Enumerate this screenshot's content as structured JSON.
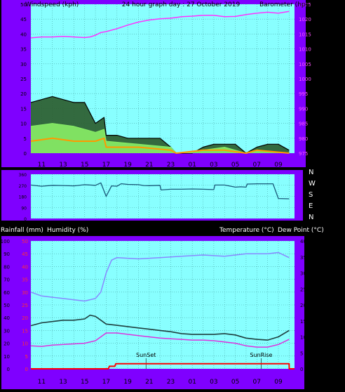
{
  "colors": {
    "frame": "#7f00ff",
    "plot_bg": "#88ffff",
    "grid": "#4aa8a8",
    "gust": "#000000",
    "windspeed": "#88ee66",
    "avg_wind": "#ff9900",
    "barometer": "#ff33ff",
    "wind_dir": "#1a5a7a",
    "humidity": "#8888ff",
    "temperature": "#1f3f3f",
    "dew_point": "#dd33dd",
    "rainfall": "#ff0000"
  },
  "header": {
    "left": "Windspeed (kph)",
    "center": "24 hour graph day : 27 October 2019",
    "right": "Barometer (hpa)"
  },
  "footer": {
    "rainfall": "Rainfall (mm)",
    "humidity": "Humidity (%)",
    "temperature": "Temperature (°C)",
    "dew_point": "Dew Point (°C)"
  },
  "time_axis": {
    "ticks": [
      "11",
      "13",
      "15",
      "17",
      "19",
      "21",
      "23",
      "01",
      "03",
      "05",
      "07",
      "09"
    ]
  },
  "chart_data": [
    {
      "type": "line",
      "title": "24 hour graph day : 27 October 2019",
      "xlabel": "",
      "ylabel": "Windspeed (kph)",
      "y2label": "Barometer (hpa)",
      "ylim": [
        0,
        50
      ],
      "y2lim": [
        975,
        1025
      ],
      "yticks": [
        0,
        5,
        10,
        15,
        20,
        25,
        30,
        35,
        40,
        45,
        50
      ],
      "y2ticks": [
        975,
        980,
        985,
        990,
        995,
        1000,
        1005,
        1010,
        1015,
        1020,
        1025
      ],
      "x_hours": [
        0,
        24.5
      ],
      "series": [
        {
          "name": "Gust",
          "axis": "left",
          "x": [
            0,
            1,
            2,
            3,
            4,
            5,
            6,
            6.8,
            7,
            8,
            9,
            10,
            11,
            12,
            13,
            13.5,
            14,
            15,
            16,
            17,
            18,
            19,
            20,
            21,
            22,
            23,
            24
          ],
          "y": [
            17,
            18,
            19,
            18,
            17,
            17,
            10,
            12,
            6,
            6,
            5,
            5,
            5,
            5,
            2,
            0,
            0,
            0,
            2,
            3,
            3,
            3,
            0,
            2,
            3,
            3,
            1
          ]
        },
        {
          "name": "Windspeed",
          "axis": "left",
          "x": [
            0,
            2,
            4,
            6,
            6.8,
            7,
            10,
            13,
            13.5,
            16,
            18,
            20,
            21,
            24
          ],
          "y": [
            9,
            10,
            9,
            7,
            8,
            4,
            3,
            2,
            0,
            1,
            2,
            0,
            1,
            0
          ]
        },
        {
          "name": "Average Wind",
          "axis": "left",
          "x": [
            0,
            2,
            4,
            6,
            6.8,
            7,
            10,
            13,
            13.5,
            16,
            18,
            20,
            21,
            24
          ],
          "y": [
            4,
            5,
            4,
            4,
            5,
            2,
            2,
            1,
            0,
            1,
            1,
            0,
            1,
            0
          ]
        },
        {
          "name": "Barometer",
          "axis": "right",
          "x": [
            0,
            1,
            2,
            3,
            4,
            5,
            5.5,
            6,
            6.5,
            7,
            8,
            9,
            10,
            11,
            12,
            13,
            14,
            15,
            16,
            17,
            18,
            19,
            20,
            21,
            22,
            23,
            24
          ],
          "y": [
            1013.7,
            1014.0,
            1014.0,
            1014.2,
            1014.0,
            1013.8,
            1014.0,
            1014.6,
            1015.5,
            1015.8,
            1016.8,
            1018.0,
            1019.0,
            1019.7,
            1020.1,
            1020.3,
            1020.8,
            1021.0,
            1021.3,
            1021.3,
            1020.8,
            1020.9,
            1021.5,
            1022.0,
            1022.3,
            1022.0,
            1022.6
          ]
        }
      ]
    },
    {
      "type": "line",
      "ylabel": "",
      "ylim": [
        0,
        360
      ],
      "yticks": [
        0,
        90,
        180,
        270,
        360
      ],
      "ytick_labels": [
        "0",
        "90",
        "180",
        "270",
        "360"
      ],
      "compass_labels": [
        "N",
        "W",
        "S",
        "E",
        "N"
      ],
      "series": [
        {
          "name": "Wind Direction",
          "x": [
            0,
            1,
            2,
            3,
            4,
            5,
            6,
            6.5,
            7,
            7.5,
            8,
            8.4,
            9,
            10,
            10.5,
            11,
            12,
            12.1,
            13,
            14,
            15,
            16,
            17,
            17.1,
            18,
            19,
            19.5,
            20,
            20.1,
            21,
            22,
            22.5,
            23,
            24
          ],
          "y": [
            272,
            262,
            270,
            268,
            265,
            275,
            270,
            290,
            180,
            265,
            262,
            283,
            277,
            275,
            268,
            267,
            270,
            232,
            238,
            238,
            240,
            238,
            235,
            272,
            272,
            255,
            258,
            255,
            280,
            282,
            282,
            282,
            162,
            160
          ]
        }
      ]
    },
    {
      "type": "line",
      "ylabel": "Humidity (%)",
      "y_rain_label": "Rainfall (mm)",
      "y2label": "Temperature (°C)",
      "ylim": [
        0,
        100
      ],
      "y_rain_lim": [
        0,
        50
      ],
      "y2lim": [
        0,
        40
      ],
      "yticks": [
        0,
        10,
        20,
        30,
        40,
        50,
        60,
        70,
        80,
        90,
        100
      ],
      "y_rain_ticks": [
        0,
        5,
        10,
        15,
        20,
        25,
        30,
        35,
        40,
        45,
        50
      ],
      "y2ticks": [
        0,
        5,
        10,
        15,
        20,
        25,
        30,
        35,
        40
      ],
      "annotations": [
        {
          "label": "SunSet",
          "x": 10.7
        },
        {
          "label": "SunRise",
          "x": 21.4
        }
      ],
      "series": [
        {
          "name": "Humidity",
          "axis": "left",
          "x": [
            0,
            1,
            2,
            3,
            4,
            5,
            6,
            6.5,
            7,
            7.5,
            8,
            10,
            12,
            14,
            16,
            18,
            20,
            22,
            23,
            24
          ],
          "y": [
            60,
            57,
            56,
            55,
            54,
            53,
            55,
            60,
            75,
            85,
            87,
            86,
            87,
            88,
            89,
            88,
            90,
            90,
            91,
            87
          ]
        },
        {
          "name": "Temperature",
          "axis": "right",
          "x": [
            0,
            1,
            2,
            3,
            4,
            5,
            5.5,
            6,
            6.5,
            7,
            8,
            9,
            10,
            11,
            12,
            13,
            14,
            15,
            16,
            17,
            18,
            19,
            20,
            21,
            22,
            23,
            24
          ],
          "y": [
            13.5,
            14.4,
            14.8,
            15.2,
            15.2,
            15.6,
            16.8,
            16.4,
            15.2,
            14.0,
            13.6,
            13.2,
            12.8,
            12.4,
            12.0,
            11.6,
            11.0,
            10.8,
            10.8,
            10.8,
            11.0,
            10.6,
            9.6,
            9.2,
            9.0,
            10.0,
            12.0
          ]
        },
        {
          "name": "Dew Point",
          "axis": "right",
          "x": [
            0,
            1,
            2,
            3,
            4,
            5,
            6,
            6.5,
            7,
            8,
            9,
            10,
            11,
            12,
            13,
            14,
            15,
            16,
            17,
            18,
            19,
            20,
            21,
            22,
            23,
            24
          ],
          "y": [
            7.2,
            7.0,
            7.4,
            7.6,
            7.8,
            8.0,
            8.8,
            10.0,
            11.2,
            11.2,
            10.8,
            10.4,
            10.0,
            9.6,
            9.4,
            9.2,
            9.0,
            9.0,
            8.8,
            8.4,
            8.0,
            7.2,
            6.8,
            6.8,
            7.6,
            9.2
          ]
        },
        {
          "name": "Rainfall",
          "axis": "rain",
          "x": [
            0,
            7.2,
            7.3,
            7.8,
            7.9,
            24,
            24.01,
            24.5
          ],
          "y": [
            0,
            0,
            1,
            1,
            2,
            2,
            0,
            0
          ]
        }
      ]
    }
  ]
}
